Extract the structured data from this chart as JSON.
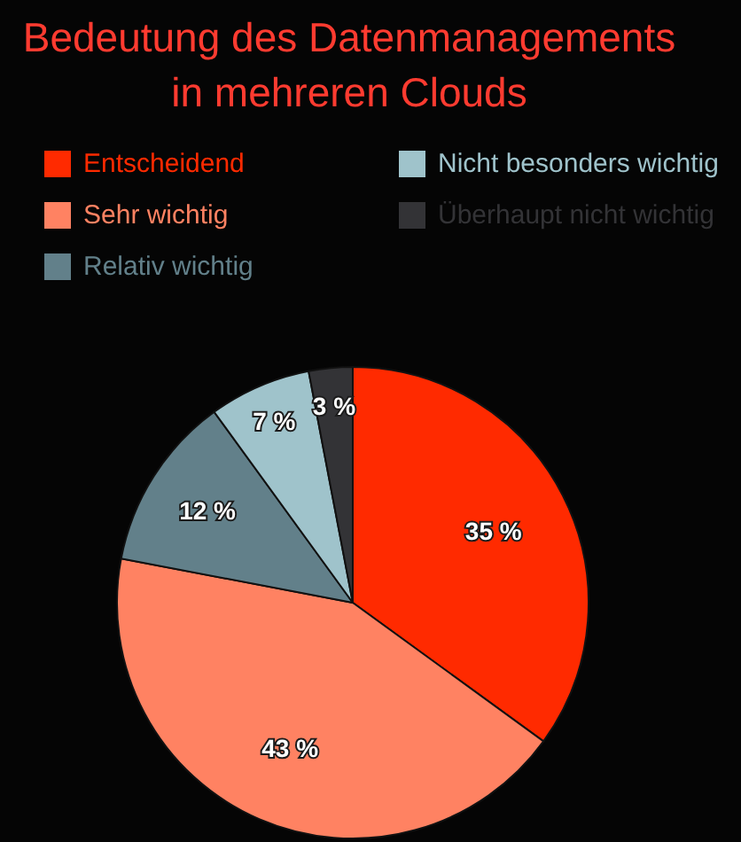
{
  "chart_data": {
    "type": "pie",
    "title": "Bedeutung des Datenmanagements in mehreren Clouds",
    "categories": [
      "Entscheidend",
      "Sehr wichtig",
      "Relativ wichtig",
      "Nicht besonders wichtig",
      "Überhaupt nicht wichtig"
    ],
    "values": [
      35,
      43,
      12,
      7,
      3
    ],
    "colors": [
      "#ff2a00",
      "#ff8262",
      "#62808a",
      "#9fc3cb",
      "#333336"
    ],
    "value_labels": [
      "35 %",
      "43 %",
      "12 %",
      "7 %",
      "3 %"
    ],
    "legend": "top"
  }
}
